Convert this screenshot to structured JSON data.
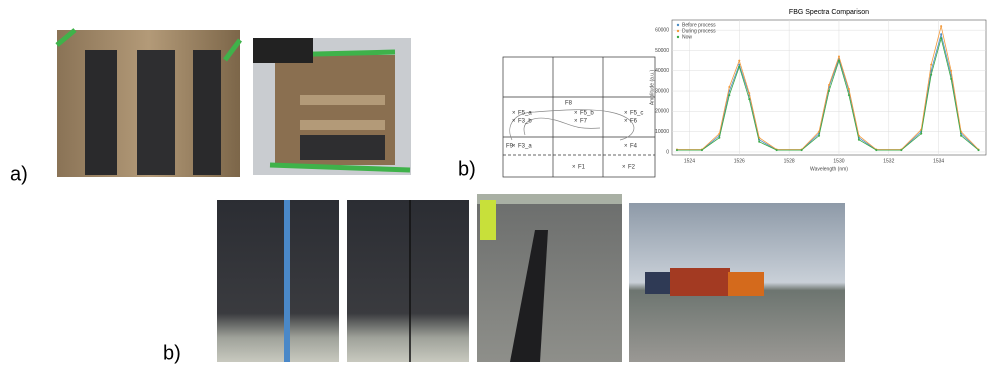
{
  "panel_labels": [
    "a)",
    "b)",
    "b)"
  ],
  "diagram": {
    "labels": [
      "F5_a",
      "F3_b",
      "F3_a",
      "F5_b",
      "F7",
      "F5_c",
      "F6",
      "F4",
      "F1",
      "F2",
      "F8",
      "F9"
    ]
  },
  "chart_data": {
    "type": "line",
    "title": "FBG Spectra Comparison",
    "x_label": "Wavelength (nm)",
    "y_label": "Amplitude (a.u.)",
    "x": [
      1523.5,
      1524.5,
      1525.2,
      1525.6,
      1526.0,
      1526.4,
      1526.8,
      1527.5,
      1528.5,
      1529.2,
      1529.6,
      1530.0,
      1530.4,
      1530.8,
      1531.5,
      1532.5,
      1533.3,
      1533.7,
      1534.1,
      1534.5,
      1534.9,
      1535.6
    ],
    "series": [
      {
        "name": "Before process",
        "color": "#4c8cc4",
        "values": [
          1000,
          1000,
          8000,
          30000,
          43000,
          28000,
          6000,
          1000,
          1000,
          9000,
          32000,
          46000,
          30000,
          7000,
          1000,
          1000,
          10000,
          40000,
          58000,
          38000,
          9000,
          1000
        ]
      },
      {
        "name": "During process",
        "color": "#f39a3c",
        "values": [
          1200,
          1200,
          9000,
          32000,
          45000,
          29000,
          7000,
          1200,
          1200,
          10000,
          33000,
          47000,
          31000,
          8000,
          1200,
          1200,
          11000,
          43000,
          62000,
          40000,
          10000,
          1200
        ]
      },
      {
        "name": "Now",
        "color": "#3aa845",
        "values": [
          900,
          900,
          7000,
          28000,
          42000,
          26000,
          5000,
          900,
          900,
          8000,
          30000,
          45000,
          28000,
          6000,
          900,
          900,
          9000,
          38000,
          56000,
          36000,
          8000,
          900
        ]
      }
    ],
    "xlim": [
      1523.3,
      1535.9
    ],
    "xticks": [
      1524,
      1526,
      1528,
      1530,
      1532,
      1534
    ],
    "ylim": [
      -1500,
      65000
    ],
    "yticks": [
      0,
      10000,
      20000,
      30000,
      40000,
      50000,
      60000
    ],
    "grid": true,
    "legend": "upper left"
  }
}
